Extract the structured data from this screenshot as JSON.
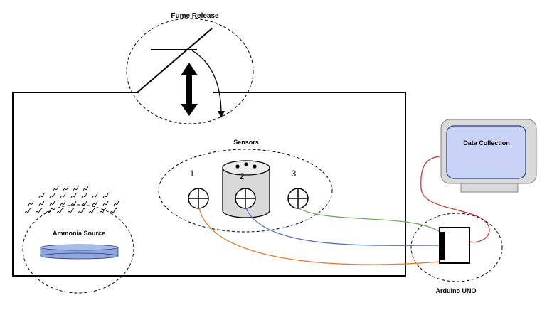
{
  "labels": {
    "fume_release": "Fume Release",
    "sensors": "Sensors",
    "ammonia_source": "Ammonia Source",
    "data_collection": "Data Collection",
    "arduino": "Arduino UNO"
  },
  "sensor_numbers": [
    "1",
    "2",
    "3"
  ],
  "colors": {
    "wire_sensor_1": "#e87722",
    "wire_sensor_2": "#4a6fc7",
    "wire_sensor_3": "#6aa84f",
    "wire_monitor": "#d62a2a",
    "monitor_screen": "#c9d3f5",
    "monitor_bezel": "#d9d9d9",
    "sensor_body": "#d9d9d9",
    "ammonia_dish": "#8fa6e0"
  }
}
